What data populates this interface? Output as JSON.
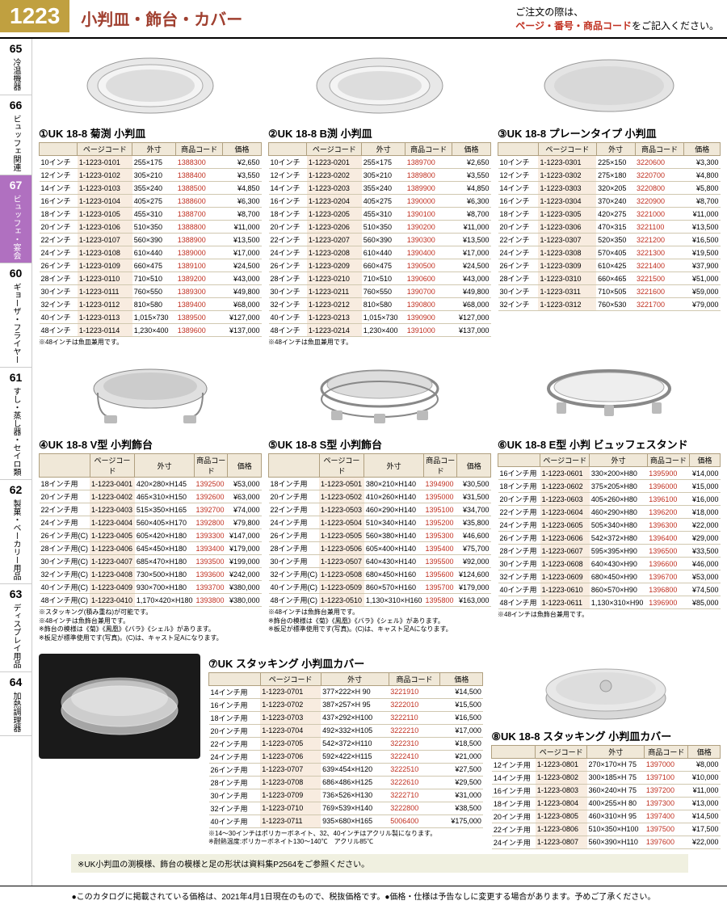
{
  "page_num": "1223",
  "page_title": "小判皿・飾台・カバー",
  "order_note_1": "ご注文の際は、",
  "order_note_2": "ページ・番号・商品コード",
  "order_note_3": "をご記入ください。",
  "sidebar": [
    {
      "num": "65",
      "label": "冷温機器"
    },
    {
      "num": "66",
      "label": "ビュッフェ関連"
    },
    {
      "num": "67",
      "label": "ビュッフェ・宴会",
      "active": true
    },
    {
      "num": "60",
      "label": "ギョーザ・フライヤー"
    },
    {
      "num": "61",
      "label": "すし・蒸し器・セイロ類"
    },
    {
      "num": "62",
      "label": "製菓・ベーカリー用品"
    },
    {
      "num": "63",
      "label": "ディスプレイ用品"
    },
    {
      "num": "64",
      "label": "加熱調理器"
    }
  ],
  "col_headers": [
    "",
    "ページコード",
    "外寸",
    "商品コード",
    "価格"
  ],
  "p1": {
    "title": "①UK 18-8 菊渕 小判皿",
    "rows": [
      [
        "10インチ",
        "1-1223-0101",
        "255×175",
        "1388300",
        "¥2,650"
      ],
      [
        "12インチ",
        "1-1223-0102",
        "305×210",
        "1388400",
        "¥3,550"
      ],
      [
        "14インチ",
        "1-1223-0103",
        "355×240",
        "1388500",
        "¥4,850"
      ],
      [
        "16インチ",
        "1-1223-0104",
        "405×275",
        "1388600",
        "¥6,300"
      ],
      [
        "18インチ",
        "1-1223-0105",
        "455×310",
        "1388700",
        "¥8,700"
      ],
      [
        "20インチ",
        "1-1223-0106",
        "510×350",
        "1388800",
        "¥11,000"
      ],
      [
        "22インチ",
        "1-1223-0107",
        "560×390",
        "1388900",
        "¥13,500"
      ],
      [
        "24インチ",
        "1-1223-0108",
        "610×440",
        "1389000",
        "¥17,000"
      ],
      [
        "26インチ",
        "1-1223-0109",
        "660×475",
        "1389100",
        "¥24,500"
      ],
      [
        "28インチ",
        "1-1223-0110",
        "710×510",
        "1389200",
        "¥43,000"
      ],
      [
        "30インチ",
        "1-1223-0111",
        "760×550",
        "1389300",
        "¥49,800"
      ],
      [
        "32インチ",
        "1-1223-0112",
        "810×580",
        "1389400",
        "¥68,000"
      ],
      [
        "40インチ",
        "1-1223-0113",
        "1,015×730",
        "1389500",
        "¥127,000"
      ],
      [
        "48インチ",
        "1-1223-0114",
        "1,230×400",
        "1389600",
        "¥137,000"
      ]
    ],
    "note": "※48インチは魚皿兼用です。"
  },
  "p2": {
    "title": "②UK 18-8 B渕 小判皿",
    "rows": [
      [
        "10インチ",
        "1-1223-0201",
        "255×175",
        "1389700",
        "¥2,650"
      ],
      [
        "12インチ",
        "1-1223-0202",
        "305×210",
        "1389800",
        "¥3,550"
      ],
      [
        "14インチ",
        "1-1223-0203",
        "355×240",
        "1389900",
        "¥4,850"
      ],
      [
        "16インチ",
        "1-1223-0204",
        "405×275",
        "1390000",
        "¥6,300"
      ],
      [
        "18インチ",
        "1-1223-0205",
        "455×310",
        "1390100",
        "¥8,700"
      ],
      [
        "20インチ",
        "1-1223-0206",
        "510×350",
        "1390200",
        "¥11,000"
      ],
      [
        "22インチ",
        "1-1223-0207",
        "560×390",
        "1390300",
        "¥13,500"
      ],
      [
        "24インチ",
        "1-1223-0208",
        "610×440",
        "1390400",
        "¥17,000"
      ],
      [
        "26インチ",
        "1-1223-0209",
        "660×475",
        "1390500",
        "¥24,500"
      ],
      [
        "28インチ",
        "1-1223-0210",
        "710×510",
        "1390600",
        "¥43,000"
      ],
      [
        "30インチ",
        "1-1223-0211",
        "760×550",
        "1390700",
        "¥49,800"
      ],
      [
        "32インチ",
        "1-1223-0212",
        "810×580",
        "1390800",
        "¥68,000"
      ],
      [
        "40インチ",
        "1-1223-0213",
        "1,015×730",
        "1390900",
        "¥127,000"
      ],
      [
        "48インチ",
        "1-1223-0214",
        "1,230×400",
        "1391000",
        "¥137,000"
      ]
    ],
    "note": "※48インチは魚皿兼用です。"
  },
  "p3": {
    "title": "③UK 18-8 プレーンタイプ 小判皿",
    "rows": [
      [
        "10インチ",
        "1-1223-0301",
        "225×150",
        "3220600",
        "¥3,300"
      ],
      [
        "12インチ",
        "1-1223-0302",
        "275×180",
        "3220700",
        "¥4,800"
      ],
      [
        "14インチ",
        "1-1223-0303",
        "320×205",
        "3220800",
        "¥5,800"
      ],
      [
        "16インチ",
        "1-1223-0304",
        "370×240",
        "3220900",
        "¥8,700"
      ],
      [
        "18インチ",
        "1-1223-0305",
        "420×275",
        "3221000",
        "¥11,000"
      ],
      [
        "20インチ",
        "1-1223-0306",
        "470×315",
        "3221100",
        "¥13,500"
      ],
      [
        "22インチ",
        "1-1223-0307",
        "520×350",
        "3221200",
        "¥16,500"
      ],
      [
        "24インチ",
        "1-1223-0308",
        "570×405",
        "3221300",
        "¥19,500"
      ],
      [
        "26インチ",
        "1-1223-0309",
        "610×425",
        "3221400",
        "¥37,900"
      ],
      [
        "28インチ",
        "1-1223-0310",
        "660×465",
        "3221500",
        "¥51,000"
      ],
      [
        "30インチ",
        "1-1223-0311",
        "710×505",
        "3221600",
        "¥59,000"
      ],
      [
        "32インチ",
        "1-1223-0312",
        "760×530",
        "3221700",
        "¥79,000"
      ]
    ]
  },
  "p4": {
    "title": "④UK 18-8 V型 小判飾台",
    "rows": [
      [
        "18インチ用",
        "1-1223-0401",
        "420×280×H145",
        "1392500",
        "¥53,000"
      ],
      [
        "20インチ用",
        "1-1223-0402",
        "465×310×H150",
        "1392600",
        "¥63,000"
      ],
      [
        "22インチ用",
        "1-1223-0403",
        "515×350×H165",
        "1392700",
        "¥74,000"
      ],
      [
        "24インチ用",
        "1-1223-0404",
        "560×405×H170",
        "1392800",
        "¥79,800"
      ],
      [
        "26インチ用(C)",
        "1-1223-0405",
        "605×420×H180",
        "1393300",
        "¥147,000"
      ],
      [
        "28インチ用(C)",
        "1-1223-0406",
        "645×450×H180",
        "1393400",
        "¥179,000"
      ],
      [
        "30インチ用(C)",
        "1-1223-0407",
        "685×470×H180",
        "1393500",
        "¥199,000"
      ],
      [
        "32インチ用(C)",
        "1-1223-0408",
        "730×500×H180",
        "1393600",
        "¥242,000"
      ],
      [
        "40インチ用(C)",
        "1-1223-0409",
        "930×700×H180",
        "1393700",
        "¥380,000"
      ],
      [
        "48インチ用(C)",
        "1-1223-0410",
        "1,170×420×H180",
        "1393800",
        "¥380,000"
      ]
    ],
    "note": "※スタッキング(積み重ね)が可能です。\n※48インチは魚飾台兼用です。\n※飾台の模様は《菊》《鳳凰》《バラ》《シェル》があります。\n※板足が標準使用です(写真)。(C)は、キャスト足Aになります。"
  },
  "p5": {
    "title": "⑤UK 18-8 S型 小判飾台",
    "rows": [
      [
        "18インチ用",
        "1-1223-0501",
        "380×210×H140",
        "1394900",
        "¥30,500"
      ],
      [
        "20インチ用",
        "1-1223-0502",
        "410×260×H140",
        "1395000",
        "¥31,500"
      ],
      [
        "22インチ用",
        "1-1223-0503",
        "460×290×H140",
        "1395100",
        "¥34,700"
      ],
      [
        "24インチ用",
        "1-1223-0504",
        "510×340×H140",
        "1395200",
        "¥35,800"
      ],
      [
        "26インチ用",
        "1-1223-0505",
        "560×380×H140",
        "1395300",
        "¥46,600"
      ],
      [
        "28インチ用",
        "1-1223-0506",
        "605×400×H140",
        "1395400",
        "¥75,700"
      ],
      [
        "30インチ用",
        "1-1223-0507",
        "640×430×H140",
        "1395500",
        "¥92,000"
      ],
      [
        "32インチ用(C)",
        "1-1223-0508",
        "680×450×H160",
        "1395600",
        "¥124,600"
      ],
      [
        "40インチ用(C)",
        "1-1223-0509",
        "860×570×H160",
        "1395700",
        "¥179,000"
      ],
      [
        "48インチ用(C)",
        "1-1223-0510",
        "1,130×310×H160",
        "1395800",
        "¥163,000"
      ]
    ],
    "note": "※48インチは魚飾台兼用です。\n※飾台の模様は《菊》《鳳凰》《バラ》《シェル》があります。\n※板足が標準使用です(写真)。(C)は、キャスト足Aになります。"
  },
  "p6": {
    "title": "⑥UK 18-8 E型 小判 ビュッフェスタンド",
    "rows": [
      [
        "16インチ用",
        "1-1223-0601",
        "330×200×H80",
        "1395900",
        "¥14,000"
      ],
      [
        "18インチ用",
        "1-1223-0602",
        "375×205×H80",
        "1396000",
        "¥15,000"
      ],
      [
        "20インチ用",
        "1-1223-0603",
        "405×260×H80",
        "1396100",
        "¥16,000"
      ],
      [
        "22インチ用",
        "1-1223-0604",
        "460×290×H80",
        "1396200",
        "¥18,000"
      ],
      [
        "24インチ用",
        "1-1223-0605",
        "505×340×H80",
        "1396300",
        "¥22,000"
      ],
      [
        "26インチ用",
        "1-1223-0606",
        "542×372×H80",
        "1396400",
        "¥29,000"
      ],
      [
        "28インチ用",
        "1-1223-0607",
        "595×395×H90",
        "1396500",
        "¥33,500"
      ],
      [
        "30インチ用",
        "1-1223-0608",
        "640×430×H90",
        "1396600",
        "¥46,000"
      ],
      [
        "32インチ用",
        "1-1223-0609",
        "680×450×H90",
        "1396700",
        "¥53,000"
      ],
      [
        "40インチ用",
        "1-1223-0610",
        "860×570×H90",
        "1396800",
        "¥74,500"
      ],
      [
        "48インチ用",
        "1-1223-0611",
        "1,130×310×H90",
        "1396900",
        "¥85,000"
      ]
    ],
    "note": "※48インチは魚飾台兼用です。"
  },
  "p7": {
    "title": "⑦UK スタッキング 小判皿カバー",
    "rows": [
      [
        "14インチ用",
        "1-1223-0701",
        "377×222×H 90",
        "3221910",
        "¥14,500"
      ],
      [
        "16インチ用",
        "1-1223-0702",
        "387×257×H 95",
        "3222010",
        "¥15,500"
      ],
      [
        "18インチ用",
        "1-1223-0703",
        "437×292×H100",
        "3222110",
        "¥16,500"
      ],
      [
        "20インチ用",
        "1-1223-0704",
        "492×332×H105",
        "3222210",
        "¥17,000"
      ],
      [
        "22インチ用",
        "1-1223-0705",
        "542×372×H110",
        "3222310",
        "¥18,500"
      ],
      [
        "24インチ用",
        "1-1223-0706",
        "592×422×H115",
        "3222410",
        "¥21,000"
      ],
      [
        "26インチ用",
        "1-1223-0707",
        "639×454×H120",
        "3222510",
        "¥27,500"
      ],
      [
        "28インチ用",
        "1-1223-0708",
        "686×486×H125",
        "3222610",
        "¥29,500"
      ],
      [
        "30インチ用",
        "1-1223-0709",
        "736×526×H130",
        "3222710",
        "¥31,000"
      ],
      [
        "32インチ用",
        "1-1223-0710",
        "769×539×H140",
        "3222800",
        "¥38,500"
      ],
      [
        "40インチ用",
        "1-1223-0711",
        "935×680×H165",
        "5006400",
        "¥175,000"
      ]
    ],
    "note": "※14～30インチはポリカーボネイト、32、40インチはアクリル製になります。\n※耐熱温度:ポリカーボネイト130～140℃　アクリル85℃"
  },
  "p8": {
    "title": "⑧UK 18-8 スタッキング 小判皿カバー",
    "rows": [
      [
        "12インチ用",
        "1-1223-0801",
        "270×170×H 75",
        "1397000",
        "¥8,000"
      ],
      [
        "14インチ用",
        "1-1223-0802",
        "300×185×H 75",
        "1397100",
        "¥10,000"
      ],
      [
        "16インチ用",
        "1-1223-0803",
        "360×240×H 75",
        "1397200",
        "¥11,000"
      ],
      [
        "18インチ用",
        "1-1223-0804",
        "400×255×H 80",
        "1397300",
        "¥13,000"
      ],
      [
        "20インチ用",
        "1-1223-0805",
        "460×310×H 95",
        "1397400",
        "¥14,500"
      ],
      [
        "22インチ用",
        "1-1223-0806",
        "510×350×H100",
        "1397500",
        "¥17,500"
      ],
      [
        "24インチ用",
        "1-1223-0807",
        "560×390×H110",
        "1397600",
        "¥22,000"
      ]
    ]
  },
  "footer_box": "※UK小判皿の渕模様、飾台の模様と足の形状は資料集P2564をご参照ください。",
  "bottom": "●このカタログに掲載されている価格は、2021年4月1日現在のもので、税抜価格です。●価格・仕様は予告なしに変更する場合があります。予めご了承ください。"
}
